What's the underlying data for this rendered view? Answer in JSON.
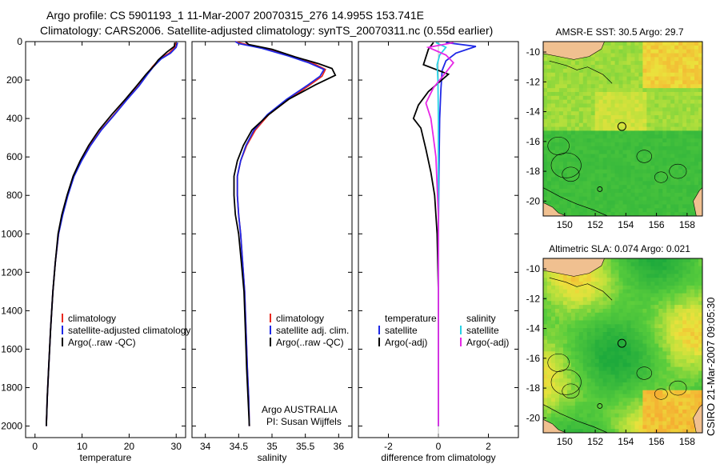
{
  "header": {
    "line1": "Argo profile: CS 5901193_1 11-Mar-2007 20070315_276 14.995S 153.741E",
    "line2": "Climatology: CARS2006. Satellite-adjusted climatology: synTS_20070311.nc (0.55d earlier)"
  },
  "colors": {
    "climatology": "#e8281e",
    "satellite": "#1e28e6",
    "argo": "#000000",
    "sat_salinity": "#28d2e6",
    "argo_salinity_adj": "#e628e6",
    "land": "#f0c090"
  },
  "side_label": "CSIRO 21-Mar-2007 09:05:30",
  "chart_data": [
    {
      "type": "line",
      "id": "temperature",
      "xlabel": "temperature",
      "ylabel": "",
      "xlim": [
        -2,
        32
      ],
      "ylim": [
        2060,
        0
      ],
      "xticks": [
        0,
        10,
        20,
        30
      ],
      "yticks": [
        0,
        200,
        400,
        600,
        800,
        1000,
        1200,
        1400,
        1600,
        1800,
        2000
      ],
      "legend": {
        "position": "lower-right",
        "entries": [
          "climatology",
          "satellite-adjusted climatology",
          "Argo(..raw -QC)"
        ]
      },
      "series": [
        {
          "name": "climatology",
          "color": "#e8281e",
          "points": [
            [
              29.9,
              5
            ],
            [
              29.7,
              30
            ],
            [
              28.5,
              60
            ],
            [
              26.5,
              90
            ],
            [
              25.0,
              130
            ],
            [
              23.8,
              170
            ],
            [
              22.0,
              230
            ],
            [
              19.5,
              300
            ],
            [
              16.8,
              380
            ],
            [
              14.0,
              460
            ],
            [
              11.7,
              540
            ],
            [
              9.8,
              620
            ],
            [
              8.2,
              700
            ],
            [
              6.9,
              800
            ],
            [
              5.8,
              900
            ],
            [
              5.0,
              1000
            ],
            [
              4.3,
              1150
            ],
            [
              3.8,
              1300
            ],
            [
              3.3,
              1500
            ],
            [
              2.9,
              1700
            ],
            [
              2.6,
              1850
            ],
            [
              2.4,
              2000
            ]
          ]
        },
        {
          "name": "satellite-adjusted climatology",
          "color": "#1e28e6",
          "points": [
            [
              30.3,
              5
            ],
            [
              30.0,
              30
            ],
            [
              28.8,
              60
            ],
            [
              26.8,
              90
            ],
            [
              25.2,
              130
            ],
            [
              23.9,
              170
            ],
            [
              22.1,
              230
            ],
            [
              19.6,
              300
            ],
            [
              16.9,
              380
            ],
            [
              14.1,
              460
            ],
            [
              11.8,
              540
            ],
            [
              9.9,
              620
            ],
            [
              8.3,
              700
            ],
            [
              7.0,
              800
            ],
            [
              5.9,
              900
            ],
            [
              5.0,
              1000
            ],
            [
              4.3,
              1150
            ],
            [
              3.8,
              1300
            ],
            [
              3.3,
              1500
            ],
            [
              2.9,
              1700
            ],
            [
              2.6,
              1850
            ],
            [
              2.4,
              2000
            ]
          ]
        },
        {
          "name": "Argo(..raw -QC)",
          "color": "#000000",
          "points": [
            [
              29.7,
              5
            ],
            [
              29.6,
              25
            ],
            [
              28.0,
              55
            ],
            [
              26.2,
              95
            ],
            [
              25.3,
              125
            ],
            [
              23.6,
              170
            ],
            [
              21.6,
              230
            ],
            [
              19.2,
              300
            ],
            [
              16.3,
              380
            ],
            [
              13.6,
              460
            ],
            [
              11.4,
              540
            ],
            [
              9.6,
              620
            ],
            [
              8.1,
              700
            ],
            [
              6.8,
              800
            ],
            [
              5.7,
              900
            ],
            [
              4.9,
              1000
            ],
            [
              4.3,
              1150
            ],
            [
              3.8,
              1300
            ],
            [
              3.3,
              1500
            ],
            [
              2.9,
              1700
            ],
            [
              2.6,
              1850
            ],
            [
              2.4,
              2000
            ]
          ]
        }
      ]
    },
    {
      "type": "line",
      "id": "salinity",
      "xlabel": "salinity",
      "ylabel": "",
      "xlim": [
        33.8,
        36.2
      ],
      "ylim": [
        2060,
        0
      ],
      "xticks": [
        34,
        34.5,
        35,
        35.5,
        36
      ],
      "yticks": [
        0,
        200,
        400,
        600,
        800,
        1000,
        1200,
        1400,
        1600,
        1800,
        2000
      ],
      "legend": {
        "position": "lower-right",
        "entries": [
          "climatology",
          "satellite adj. clim.",
          "Argo(..raw -QC)"
        ]
      },
      "annotations": [
        "Argo AUSTRALIA",
        "PI: Susan Wijffels"
      ],
      "series": [
        {
          "name": "climatology",
          "color": "#e8281e",
          "points": [
            [
              34.45,
              0
            ],
            [
              34.55,
              10
            ],
            [
              34.9,
              35
            ],
            [
              35.3,
              75
            ],
            [
              35.6,
              110
            ],
            [
              35.8,
              145
            ],
            [
              35.75,
              180
            ],
            [
              35.55,
              230
            ],
            [
              35.25,
              300
            ],
            [
              34.95,
              380
            ],
            [
              34.75,
              460
            ],
            [
              34.62,
              540
            ],
            [
              34.53,
              620
            ],
            [
              34.48,
              700
            ],
            [
              34.48,
              800
            ],
            [
              34.5,
              900
            ],
            [
              34.53,
              1000
            ],
            [
              34.56,
              1150
            ],
            [
              34.59,
              1300
            ],
            [
              34.61,
              1500
            ],
            [
              34.63,
              1700
            ],
            [
              34.65,
              1850
            ],
            [
              34.66,
              2000
            ]
          ]
        },
        {
          "name": "satellite adj. clim.",
          "color": "#1e28e6",
          "points": [
            [
              34.45,
              0
            ],
            [
              34.5,
              10
            ],
            [
              34.85,
              35
            ],
            [
              35.25,
              75
            ],
            [
              35.55,
              110
            ],
            [
              35.78,
              145
            ],
            [
              35.72,
              180
            ],
            [
              35.52,
              230
            ],
            [
              35.22,
              300
            ],
            [
              34.93,
              380
            ],
            [
              34.73,
              460
            ],
            [
              34.61,
              540
            ],
            [
              34.53,
              620
            ],
            [
              34.48,
              700
            ],
            [
              34.48,
              800
            ],
            [
              34.5,
              900
            ],
            [
              34.53,
              1000
            ],
            [
              34.56,
              1150
            ],
            [
              34.59,
              1300
            ],
            [
              34.61,
              1500
            ],
            [
              34.63,
              1700
            ],
            [
              34.65,
              1850
            ],
            [
              34.66,
              2000
            ]
          ]
        },
        {
          "name": "Argo(..raw -QC)",
          "color": "#000000",
          "points": [
            [
              34.6,
              0
            ],
            [
              34.65,
              15
            ],
            [
              35.0,
              40
            ],
            [
              35.35,
              80
            ],
            [
              35.7,
              115
            ],
            [
              35.9,
              140
            ],
            [
              35.95,
              175
            ],
            [
              35.65,
              225
            ],
            [
              35.25,
              300
            ],
            [
              34.95,
              380
            ],
            [
              34.7,
              460
            ],
            [
              34.57,
              540
            ],
            [
              34.48,
              620
            ],
            [
              34.43,
              700
            ],
            [
              34.43,
              800
            ],
            [
              34.45,
              900
            ],
            [
              34.5,
              1000
            ],
            [
              34.54,
              1150
            ],
            [
              34.58,
              1300
            ],
            [
              34.6,
              1500
            ],
            [
              34.62,
              1700
            ],
            [
              34.64,
              1850
            ],
            [
              34.66,
              2000
            ]
          ]
        }
      ]
    },
    {
      "type": "line",
      "id": "difference",
      "xlabel": "difference from climatology",
      "ylabel": "",
      "xlim": [
        -3.2,
        3.2
      ],
      "ylim": [
        2060,
        0
      ],
      "xticks": [
        -2,
        0,
        2
      ],
      "yticks": [
        0,
        200,
        400,
        600,
        800,
        1000,
        1200,
        1400,
        1600,
        1800,
        2000
      ],
      "legend": {
        "position": "lower",
        "headings": [
          "temperature",
          "salinity"
        ],
        "entries": [
          "satellite",
          "Argo(-adj)",
          "satellite",
          "Argo(-adj)"
        ]
      },
      "series": [
        {
          "name": "temperature satellite",
          "color": "#1e28e6",
          "points": [
            [
              0.3,
              5
            ],
            [
              1.5,
              25
            ],
            [
              0.7,
              60
            ],
            [
              0.3,
              100
            ],
            [
              0.15,
              150
            ],
            [
              0.1,
              250
            ],
            [
              0.05,
              400
            ],
            [
              0.02,
              700
            ],
            [
              0,
              1000
            ],
            [
              0,
              2000
            ]
          ]
        },
        {
          "name": "temperature Argo(-adj)",
          "color": "#000000",
          "points": [
            [
              -0.2,
              5
            ],
            [
              -0.4,
              40
            ],
            [
              -0.6,
              120
            ],
            [
              0.4,
              170
            ],
            [
              -0.4,
              260
            ],
            [
              -0.8,
              330
            ],
            [
              -1.0,
              400
            ],
            [
              -0.7,
              450
            ],
            [
              -0.5,
              560
            ],
            [
              -0.3,
              680
            ],
            [
              -0.15,
              800
            ],
            [
              -0.05,
              1000
            ],
            [
              0,
              1300
            ],
            [
              0,
              2000
            ]
          ]
        },
        {
          "name": "salinity satellite",
          "color": "#28d2e6",
          "points": [
            [
              -0.1,
              5
            ],
            [
              0.3,
              30
            ],
            [
              0.05,
              70
            ],
            [
              -0.05,
              120
            ],
            [
              -0.02,
              200
            ],
            [
              0,
              400
            ],
            [
              0,
              2000
            ]
          ]
        },
        {
          "name": "salinity Argo(-adj)",
          "color": "#e628e6",
          "points": [
            [
              0.6,
              5
            ],
            [
              -0.4,
              30
            ],
            [
              0.3,
              70
            ],
            [
              0.6,
              110
            ],
            [
              0.3,
              160
            ],
            [
              -0.2,
              240
            ],
            [
              -0.5,
              320
            ],
            [
              -0.3,
              400
            ],
            [
              -0.2,
              500
            ],
            [
              -0.1,
              600
            ],
            [
              -0.05,
              750
            ],
            [
              0,
              900
            ],
            [
              0,
              2000
            ]
          ]
        }
      ]
    },
    {
      "type": "heatmap",
      "id": "sst_map",
      "title": "AMSR-E SST: 30.5 Argo: 29.7",
      "xticks": [
        150,
        152,
        154,
        156,
        158
      ],
      "yticks": [
        -10,
        -12,
        -14,
        -16,
        -18,
        -20
      ],
      "xlim": [
        148.6,
        159.0
      ],
      "ylim": [
        -21.0,
        -9.3
      ],
      "marker": [
        153.741,
        -14.995
      ]
    },
    {
      "type": "heatmap",
      "id": "sla_map",
      "title": "Altimetric SLA: 0.074 Argo: 0.021",
      "xticks": [
        150,
        152,
        154,
        156,
        158
      ],
      "yticks": [
        -10,
        -12,
        -14,
        -16,
        -18,
        -20
      ],
      "xlim": [
        148.6,
        159.0
      ],
      "ylim": [
        -21.0,
        -9.3
      ],
      "marker": [
        153.741,
        -14.995
      ]
    }
  ]
}
